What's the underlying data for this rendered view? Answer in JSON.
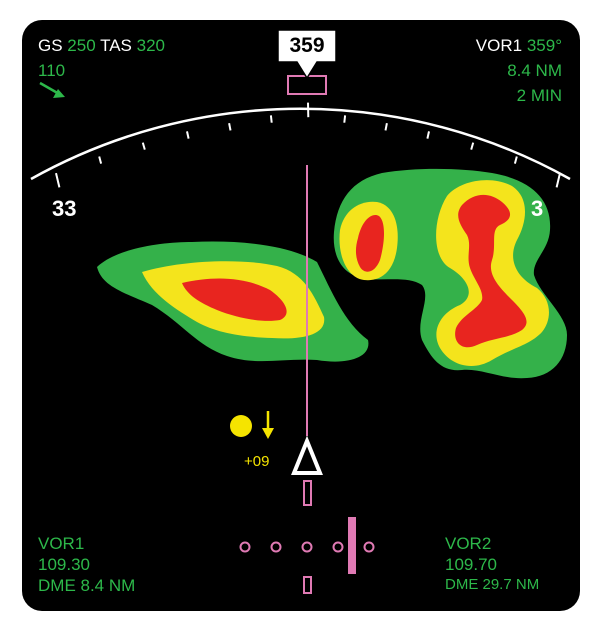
{
  "colors": {
    "background": "#000000",
    "text_primary": "#ffffff",
    "text_value": "#2db84a",
    "course_line": "#e07ab4",
    "weather_green": "#34b14a",
    "weather_yellow": "#f4e41c",
    "weather_red": "#e8251f",
    "traffic": "#f5e400"
  },
  "top_left": {
    "gs_label": "GS",
    "gs_value": "250",
    "tas_label": "TAS",
    "tas_value": "320",
    "wind_value": "110",
    "wind_icon": "wind-arrow-icon"
  },
  "heading": {
    "value": "359"
  },
  "compass": {
    "left_label": "33",
    "right_label": "3"
  },
  "top_right": {
    "nav_label": "VOR1",
    "nav_bearing": "359°",
    "distance": "8.4 NM",
    "time": "2 MIN"
  },
  "traffic": {
    "relative_altitude": "+09",
    "trend": "descending",
    "icon": "traffic-circle-icon"
  },
  "aircraft": {
    "icon": "aircraft-triangle-icon"
  },
  "bottom_left": {
    "label": "VOR1",
    "frequency": "109.30",
    "dme": "DME 8.4 NM"
  },
  "bottom_right": {
    "label": "VOR2",
    "frequency": "109.70",
    "dme": "DME 29.7 NM"
  }
}
